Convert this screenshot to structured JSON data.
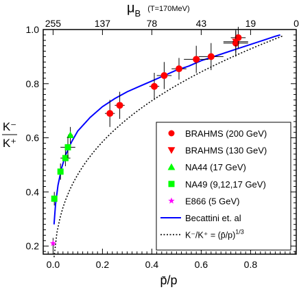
{
  "chart_data": {
    "type": "scatter",
    "title": "",
    "xlabel": "p̄/p",
    "ylabel": "K⁻/K⁺",
    "xlim": [
      -0.04,
      0.985
    ],
    "ylim": [
      0.17,
      1.0
    ],
    "x_ticks": [
      0.0,
      0.2,
      0.4,
      0.6,
      0.8
    ],
    "x_tick_labels": [
      "0.0",
      "0.2",
      "0.4",
      "0.6",
      "0.8"
    ],
    "y_ticks": [
      0.2,
      0.4,
      0.6,
      0.8,
      1.0
    ],
    "y_tick_labels": [
      "0.2",
      "0.4",
      "0.6",
      "0.8",
      "1.0"
    ],
    "top_axis": {
      "label_main": "μ",
      "label_sub": "B",
      "label_note": "(T=170MeV)",
      "ticks": [
        {
          "x": 0.0,
          "label": "255"
        },
        {
          "x": 0.2,
          "label": "137"
        },
        {
          "x": 0.4,
          "label": "78"
        },
        {
          "x": 0.6,
          "label": "43"
        },
        {
          "x": 0.8,
          "label": "19"
        },
        {
          "x": 0.985,
          "label": "0"
        }
      ]
    },
    "grid": false,
    "legend_position": "bottom-right",
    "series": [
      {
        "name": "BRAHMS (200 GeV)",
        "marker": "circle",
        "color": "#ff0000",
        "points": [
          {
            "x": 0.23,
            "y": 0.69,
            "xerr": 0.02,
            "yerr": 0.05
          },
          {
            "x": 0.27,
            "y": 0.72,
            "xerr": 0.02,
            "yerr": 0.05
          },
          {
            "x": 0.41,
            "y": 0.79,
            "xerr": 0.02,
            "yerr": 0.05
          },
          {
            "x": 0.45,
            "y": 0.83,
            "xerr": 0.03,
            "yerr": 0.05
          },
          {
            "x": 0.51,
            "y": 0.855,
            "xerr": 0.03,
            "yerr": 0.04
          },
          {
            "x": 0.58,
            "y": 0.89,
            "xerr": 0.05,
            "yerr": 0.05
          },
          {
            "x": 0.64,
            "y": 0.9,
            "xerr": 0.05,
            "yerr": 0.05
          },
          {
            "x": 0.74,
            "y": 0.95,
            "xerr": 0.05,
            "yerr": 0.05
          },
          {
            "x": 0.75,
            "y": 0.97,
            "xerr": 0.03,
            "yerr": 0.04
          }
        ]
      },
      {
        "name": "BRAHMS (130 GeV)",
        "marker": "triangle-down",
        "color": "#ff0000",
        "points": [
          {
            "x": 0.74,
            "y": 0.955,
            "xerr": 0.05,
            "yerr": 0.04
          }
        ]
      },
      {
        "name": "NA44 (17 GeV)",
        "marker": "triangle-up",
        "color": "#00ff00",
        "points": [
          {
            "x": 0.07,
            "y": 0.61,
            "xerr": 0.01,
            "yerr": 0.03
          }
        ]
      },
      {
        "name": "NA49 (9,12,17 GeV)",
        "marker": "square",
        "color": "#00ff00",
        "points": [
          {
            "x": 0.005,
            "y": 0.375,
            "xerr": 0.005,
            "yerr": 0.025
          },
          {
            "x": 0.03,
            "y": 0.475,
            "xerr": 0.01,
            "yerr": 0.03
          },
          {
            "x": 0.05,
            "y": 0.525,
            "xerr": 0.02,
            "yerr": 0.03
          },
          {
            "x": 0.06,
            "y": 0.565,
            "xerr": 0.03,
            "yerr": 0.04
          }
        ]
      },
      {
        "name": "E866 (5 GeV)",
        "marker": "star",
        "color": "#ff00ff",
        "points": [
          {
            "x": 0.0,
            "y": 0.21,
            "xerr": 0.003,
            "yerr": 0.02
          }
        ]
      },
      {
        "name": "Becattini et. al",
        "type": "line",
        "style": "solid",
        "color": "#0000ff",
        "x": [
          0.004,
          0.01,
          0.02,
          0.035,
          0.05,
          0.075,
          0.1,
          0.15,
          0.2,
          0.25,
          0.3,
          0.35,
          0.4,
          0.45,
          0.5,
          0.55,
          0.6,
          0.65,
          0.7,
          0.75,
          0.8,
          0.85,
          0.9,
          0.92
        ],
        "y": [
          0.28,
          0.355,
          0.425,
          0.49,
          0.535,
          0.585,
          0.625,
          0.675,
          0.715,
          0.745,
          0.77,
          0.79,
          0.81,
          0.83,
          0.85,
          0.865,
          0.885,
          0.9,
          0.915,
          0.93,
          0.945,
          0.96,
          0.975,
          0.98
        ]
      },
      {
        "name": "K⁻/K⁺ = (p̄/p)^1/3",
        "legend_main": "K⁻/K⁺ = (p̄/p)",
        "legend_exponent": "1/3",
        "type": "line",
        "style": "dotted",
        "color": "#000000",
        "function": "cube_root",
        "x_range": [
          0.004,
          0.93
        ]
      }
    ]
  }
}
